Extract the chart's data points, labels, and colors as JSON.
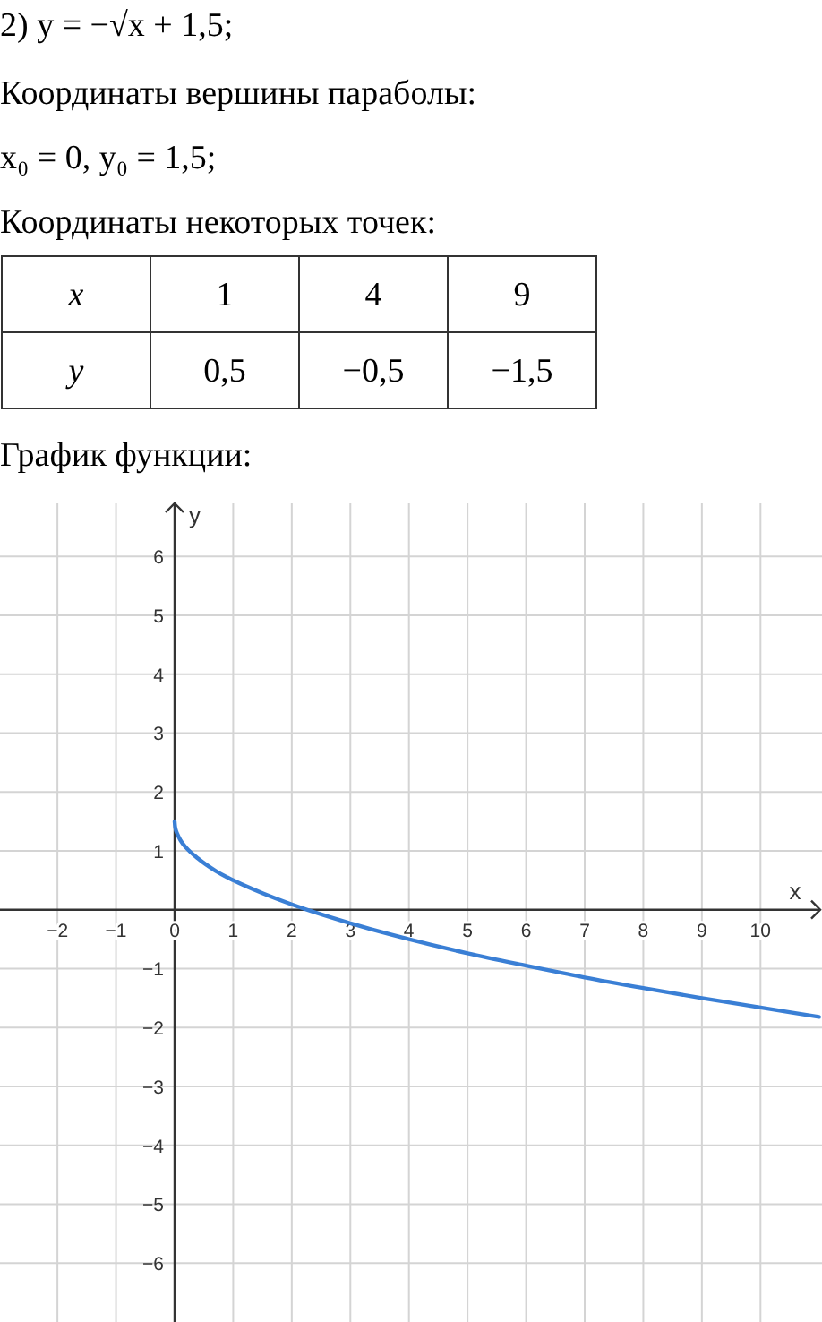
{
  "chart_data": {
    "type": "line",
    "title": "2) y = −√x + 1,5;",
    "annotations": [
      "Координаты вершины параболы:",
      "x₀ = 0,  y₀ = 1,5;",
      "Координаты некоторых точек:",
      "x",
      "1",
      "4",
      "9",
      "y",
      "0,5",
      "−0,5",
      "−1,5",
      "График функции:"
    ],
    "xlabel": "x",
    "ylabel": "y",
    "series": [
      {
        "color": "#3a7fd5",
        "x": [
          0,
          0.01,
          0.05,
          0.1,
          0.2,
          0.4,
          0.7,
          1,
          1.5,
          2,
          3,
          4,
          5,
          6,
          7,
          8,
          9,
          10,
          11
        ],
        "values": [
          1.5,
          1.4,
          1.28,
          1.18,
          1.05,
          0.87,
          0.66,
          0.5,
          0.28,
          0.09,
          -0.23,
          -0.5,
          -0.74,
          -0.95,
          -1.15,
          -1.33,
          -1.5,
          -1.66,
          -1.82
        ]
      }
    ],
    "xlim": [
      -2.98,
      11.05
    ],
    "ylim": [
      -7,
      6.9
    ],
    "xticks": [
      -2,
      -1,
      0,
      1,
      2,
      3,
      4,
      5,
      6,
      7,
      8,
      9,
      10
    ],
    "yticks": [
      -6,
      -5,
      -4,
      -3,
      -2,
      -1,
      1,
      2,
      3,
      4,
      5,
      6
    ],
    "grid": true,
    "marker": "none",
    "line_style": "solid"
  }
}
